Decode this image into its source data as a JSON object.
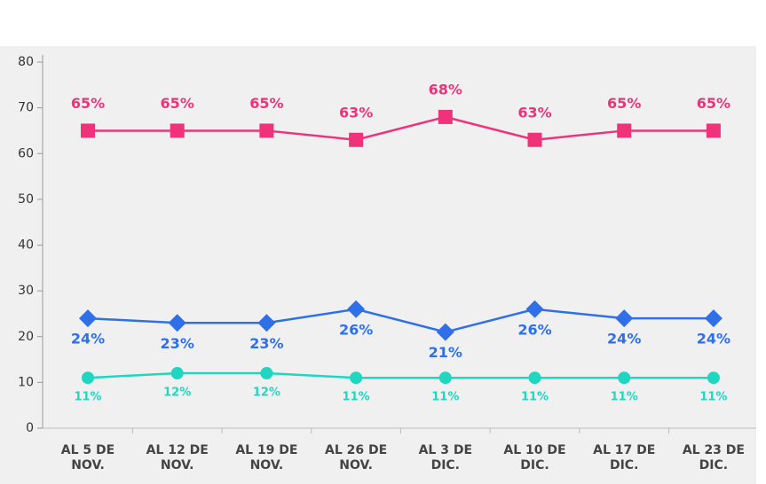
{
  "chart_data": {
    "type": "line",
    "categories": [
      [
        "AL 5 DE",
        "NOV."
      ],
      [
        "AL 12 DE",
        "NOV."
      ],
      [
        "AL 19 DE",
        "NOV."
      ],
      [
        "AL 26 DE",
        "NOV."
      ],
      [
        "AL 3 DE",
        "DIC."
      ],
      [
        "AL 10 DE",
        "DIC."
      ],
      [
        "AL 17 DE",
        "DIC."
      ],
      [
        "AL 23 DE",
        "DIC."
      ]
    ],
    "series": [
      {
        "color": "#f0327a",
        "marker": "square",
        "values": [
          65,
          65,
          65,
          63,
          68,
          63,
          65,
          65
        ],
        "value_labels": [
          "65%",
          "65%",
          "65%",
          "63%",
          "68%",
          "63%",
          "65%",
          "65%"
        ]
      },
      {
        "color": "#2f6fe8",
        "marker": "diamond",
        "values": [
          24,
          23,
          23,
          26,
          21,
          26,
          24,
          24
        ],
        "value_labels": [
          "24%",
          "23%",
          "23%",
          "26%",
          "21%",
          "26%",
          "24%",
          "24%"
        ]
      },
      {
        "color": "#1fd6c0",
        "marker": "circle",
        "values": [
          11,
          12,
          12,
          11,
          11,
          11,
          11,
          11
        ],
        "value_labels": [
          "11%",
          "12%",
          "12%",
          "11%",
          "11%",
          "11%",
          "11%",
          "11%"
        ]
      }
    ],
    "ylim": [
      0,
      80
    ],
    "yticks": [
      0,
      10,
      20,
      30,
      40,
      50,
      60,
      70,
      80
    ]
  }
}
